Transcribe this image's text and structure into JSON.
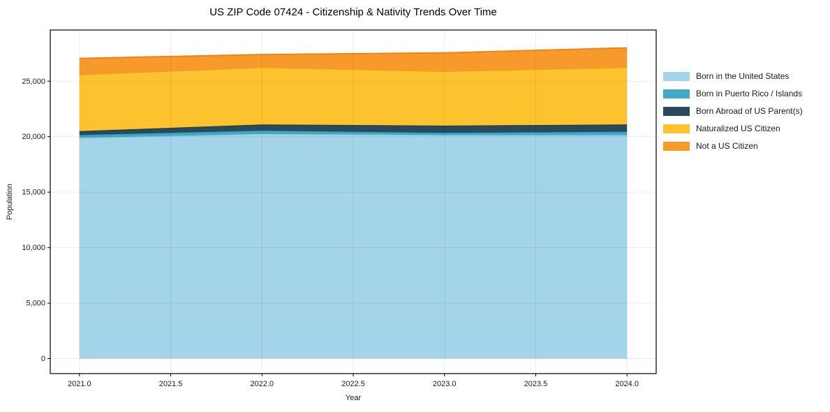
{
  "chart_data": {
    "type": "area",
    "stacked": true,
    "title": "US ZIP Code 07424 - Citizenship & Nativity Trends Over Time",
    "xlabel": "Year",
    "ylabel": "Population",
    "x": [
      2021,
      2022,
      2023,
      2024
    ],
    "series": [
      {
        "key": "born-us",
        "name": "Born in the United States",
        "fill": "#a4d4e9",
        "edge": "#7ec6dc",
        "values": [
          19900,
          20250,
          20150,
          20150
        ]
      },
      {
        "key": "born-pr-islands",
        "name": "Born in Puerto Rico / Islands",
        "fill": "#41a9c6",
        "edge": "#2e94b0",
        "values": [
          250,
          300,
          200,
          300
        ]
      },
      {
        "key": "born-abroad",
        "name": "Born Abroad of US Parent(s)",
        "fill": "#284a5c",
        "edge": "#1d3b4a",
        "values": [
          350,
          550,
          650,
          650
        ]
      },
      {
        "key": "naturalized",
        "name": "Naturalized US Citizen",
        "fill": "#fdc32f",
        "edge": "#efa01c",
        "values": [
          5100,
          5150,
          4900,
          5150
        ]
      },
      {
        "key": "not-citizen",
        "name": "Not a US Citizen",
        "fill": "#f8992b",
        "edge": "#ee8414",
        "values": [
          1450,
          1150,
          1650,
          1750
        ]
      }
    ],
    "totals": [
      27050,
      27400,
      27550,
      28000
    ],
    "xticks": {
      "values": [
        2021.0,
        2021.5,
        2022.0,
        2022.5,
        2023.0,
        2023.5,
        2024.0
      ],
      "labels": [
        "2021.0",
        "2021.5",
        "2022.0",
        "2022.5",
        "2023.0",
        "2023.5",
        "2024.0"
      ]
    },
    "yticks": {
      "values": [
        0,
        5000,
        10000,
        15000,
        20000,
        25000
      ],
      "labels": [
        "0",
        "5,000",
        "10,000",
        "15,000",
        "20,000",
        "25,000"
      ]
    },
    "xlim": [
      2020.84,
      2024.16
    ],
    "ylim": [
      -1350,
      29610
    ],
    "grid": true,
    "grid_color": "#ebebeb",
    "spine_color": "#000000",
    "tick_label_color": "#1a1a1a",
    "legend_position": "right"
  }
}
